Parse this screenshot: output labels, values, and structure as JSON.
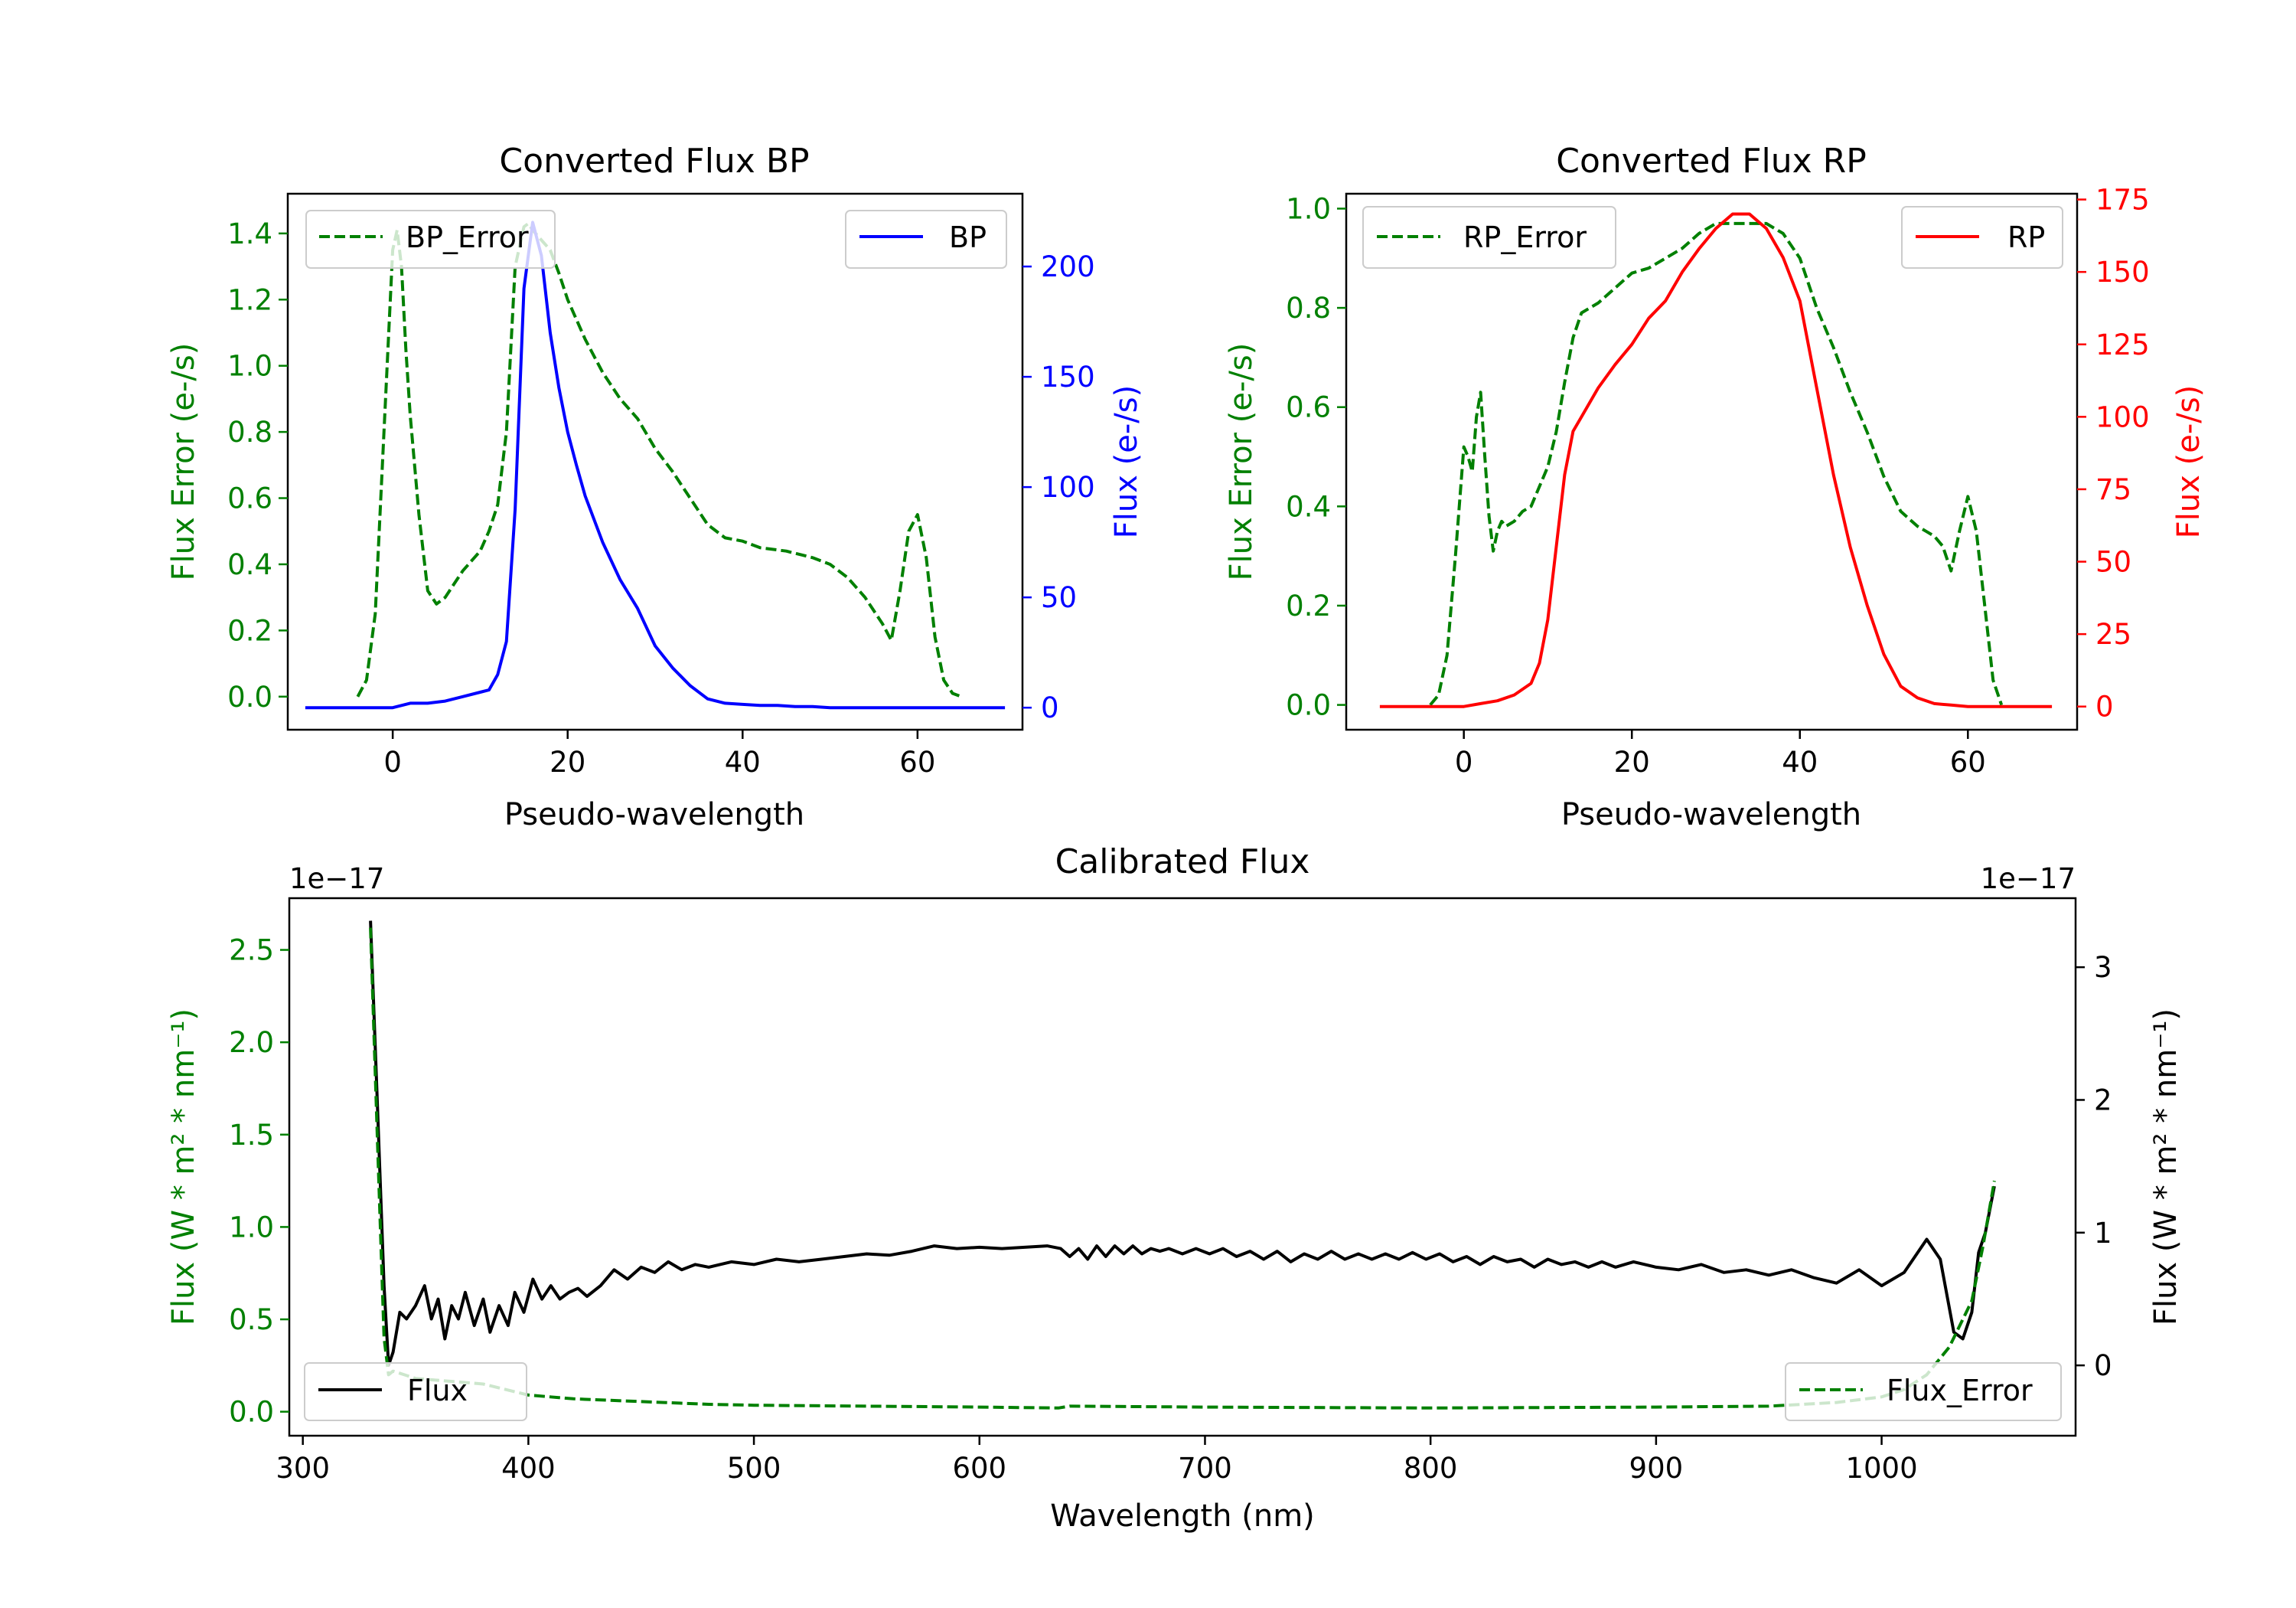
{
  "chart_data": [
    {
      "type": "line",
      "title": "Converted Flux BP",
      "xlabel": "Pseudo-wavelength",
      "ylabel_left": "Flux Error (e-/s)",
      "ylabel_right": "Flux (e-/s)",
      "xlim": [
        -12,
        72
      ],
      "ylim_left": [
        -0.1,
        1.52
      ],
      "ylim_right": [
        -10,
        233
      ],
      "xticks": [
        "0",
        "20",
        "40",
        "60"
      ],
      "yticks_left": [
        "0.0",
        "0.2",
        "0.4",
        "0.6",
        "0.8",
        "1.0",
        "1.2",
        "1.4"
      ],
      "yticks_right": [
        "0",
        "50",
        "100",
        "150",
        "200"
      ],
      "colors": {
        "left_axis": "#008000",
        "right_axis": "#0000ff"
      },
      "series": [
        {
          "name": "BP_Error",
          "axis": "left",
          "color": "#008000",
          "style": "dashed",
          "x": [
            -4,
            -3,
            -2,
            -1,
            0,
            0.5,
            1,
            1.5,
            2,
            3,
            4,
            5,
            6,
            7,
            8,
            9,
            10,
            11,
            12,
            13,
            14,
            15,
            15.5,
            16,
            17,
            18,
            19,
            20,
            22,
            24,
            26,
            28,
            30,
            32,
            34,
            36,
            38,
            40,
            42,
            45,
            48,
            50,
            52,
            54,
            56,
            57,
            58,
            59,
            60,
            61,
            62,
            63,
            64,
            65
          ],
          "y": [
            0,
            0.05,
            0.25,
            0.8,
            1.35,
            1.41,
            1.3,
            1.05,
            0.85,
            0.55,
            0.32,
            0.28,
            0.3,
            0.34,
            0.38,
            0.41,
            0.44,
            0.5,
            0.58,
            0.8,
            1.3,
            1.42,
            1.43,
            1.41,
            1.38,
            1.35,
            1.28,
            1.2,
            1.08,
            0.98,
            0.9,
            0.84,
            0.75,
            0.68,
            0.6,
            0.52,
            0.48,
            0.47,
            0.45,
            0.44,
            0.42,
            0.4,
            0.36,
            0.3,
            0.22,
            0.17,
            0.32,
            0.5,
            0.55,
            0.42,
            0.18,
            0.05,
            0.01,
            0
          ]
        },
        {
          "name": "BP",
          "axis": "right",
          "color": "#0000ff",
          "style": "solid",
          "x": [
            -10,
            -5,
            -2,
            0,
            2,
            4,
            6,
            8,
            10,
            11,
            12,
            13,
            14,
            15,
            16,
            17,
            18,
            19,
            20,
            21,
            22,
            24,
            26,
            28,
            30,
            32,
            34,
            36,
            38,
            40,
            42,
            44,
            46,
            48,
            50,
            55,
            60,
            65,
            70
          ],
          "y": [
            0,
            0,
            0,
            0,
            2,
            2,
            3,
            5,
            7,
            8,
            15,
            30,
            90,
            190,
            220,
            205,
            170,
            145,
            125,
            110,
            96,
            75,
            58,
            45,
            28,
            18,
            10,
            4,
            2,
            1.5,
            1,
            1,
            0.5,
            0.5,
            0,
            0,
            0,
            0,
            0
          ]
        }
      ],
      "legend": [
        {
          "label": "BP_Error",
          "position": "upper left"
        },
        {
          "label": "BP",
          "position": "upper right"
        }
      ]
    },
    {
      "type": "line",
      "title": "Converted Flux RP",
      "xlabel": "Pseudo-wavelength",
      "ylabel_left": "Flux Error (e-/s)",
      "ylabel_right": "Flux (e-/s)",
      "xlim": [
        -14,
        73
      ],
      "ylim_left": [
        -0.05,
        1.03
      ],
      "ylim_right": [
        -8,
        177
      ],
      "xticks": [
        "0",
        "20",
        "40",
        "60"
      ],
      "yticks_left": [
        "0.0",
        "0.2",
        "0.4",
        "0.6",
        "0.8",
        "1.0"
      ],
      "yticks_right": [
        "0",
        "25",
        "50",
        "75",
        "100",
        "125",
        "150",
        "175"
      ],
      "colors": {
        "left_axis": "#008000",
        "right_axis": "#ff0000"
      },
      "series": [
        {
          "name": "RP_Error",
          "axis": "left",
          "color": "#008000",
          "style": "dashed",
          "x": [
            -4,
            -3,
            -2,
            -1,
            0,
            0.5,
            1,
            1.5,
            2,
            2.5,
            3,
            3.5,
            4,
            4.5,
            5,
            6,
            7,
            8,
            10,
            11,
            12,
            13,
            14,
            16,
            18,
            20,
            22,
            24,
            26,
            28,
            30,
            32,
            34,
            36,
            38,
            40,
            42,
            44,
            46,
            48,
            50,
            52,
            54,
            55,
            56,
            57,
            58,
            59,
            60,
            61,
            62,
            63,
            64
          ],
          "y": [
            0,
            0.02,
            0.1,
            0.3,
            0.52,
            0.5,
            0.47,
            0.58,
            0.63,
            0.5,
            0.38,
            0.31,
            0.35,
            0.37,
            0.36,
            0.37,
            0.39,
            0.4,
            0.48,
            0.55,
            0.65,
            0.74,
            0.79,
            0.81,
            0.84,
            0.87,
            0.88,
            0.9,
            0.92,
            0.95,
            0.97,
            0.97,
            0.97,
            0.97,
            0.95,
            0.9,
            0.8,
            0.72,
            0.63,
            0.55,
            0.46,
            0.39,
            0.36,
            0.35,
            0.34,
            0.32,
            0.27,
            0.35,
            0.42,
            0.35,
            0.2,
            0.05,
            0
          ]
        },
        {
          "name": "RP",
          "axis": "right",
          "color": "#ff0000",
          "style": "solid",
          "x": [
            -10,
            -5,
            -2,
            0,
            2,
            4,
            6,
            8,
            9,
            10,
            11,
            12,
            13,
            14,
            16,
            18,
            20,
            22,
            24,
            26,
            28,
            30,
            32,
            34,
            36,
            38,
            40,
            42,
            44,
            46,
            48,
            50,
            52,
            54,
            56,
            58,
            60,
            65,
            70
          ],
          "y": [
            0,
            0,
            0,
            0,
            1,
            2,
            4,
            8,
            15,
            30,
            55,
            80,
            95,
            100,
            110,
            118,
            125,
            134,
            140,
            150,
            158,
            165,
            170,
            170,
            165,
            155,
            140,
            110,
            80,
            55,
            35,
            18,
            7,
            3,
            1,
            0.5,
            0,
            0,
            0
          ]
        }
      ],
      "legend": [
        {
          "label": "RP_Error",
          "position": "upper left"
        },
        {
          "label": "RP",
          "position": "upper right"
        }
      ]
    },
    {
      "type": "line",
      "title": "Calibrated Flux",
      "xlabel": "Wavelength (nm)",
      "ylabel_left": "Flux (W * m² * nm⁻¹)",
      "ylabel_right": "Flux (W * m² * nm⁻¹)",
      "offset_left": "1e−17",
      "offset_right": "1e−17",
      "xlim": [
        294,
        1086
      ],
      "ylim_left": [
        -0.13,
        2.78
      ],
      "ylim_right": [
        -0.53,
        3.52
      ],
      "xticks": [
        "300",
        "400",
        "500",
        "600",
        "700",
        "800",
        "900",
        "1000"
      ],
      "yticks_left": [
        "0.0",
        "0.5",
        "1.0",
        "1.5",
        "2.0",
        "2.5"
      ],
      "yticks_right": [
        "0",
        "1",
        "2",
        "3"
      ],
      "colors": {
        "left_axis": "#008000",
        "right_axis": "#000000"
      },
      "series": [
        {
          "name": "Flux",
          "axis": "right",
          "color": "#000000",
          "style": "solid",
          "x": [
            330,
            333,
            336,
            338,
            340,
            343,
            346,
            350,
            354,
            357,
            360,
            363,
            366,
            369,
            372,
            376,
            380,
            383,
            387,
            391,
            394,
            398,
            402,
            406,
            410,
            414,
            418,
            422,
            426,
            432,
            438,
            444,
            450,
            456,
            462,
            468,
            474,
            480,
            490,
            500,
            510,
            520,
            530,
            540,
            550,
            560,
            570,
            580,
            590,
            600,
            610,
            620,
            630,
            636,
            640,
            644,
            648,
            652,
            656,
            660,
            664,
            668,
            672,
            676,
            680,
            684,
            690,
            696,
            702,
            708,
            714,
            720,
            726,
            732,
            738,
            744,
            750,
            756,
            762,
            768,
            774,
            780,
            786,
            792,
            798,
            804,
            810,
            816,
            822,
            828,
            834,
            840,
            846,
            852,
            858,
            864,
            870,
            876,
            882,
            890,
            900,
            910,
            920,
            930,
            940,
            950,
            960,
            970,
            980,
            990,
            1000,
            1010,
            1020,
            1026,
            1032,
            1036,
            1040,
            1043,
            1046,
            1050
          ],
          "y": [
            3.35,
            2.0,
            0.6,
            0,
            0.1,
            0.4,
            0.35,
            0.45,
            0.6,
            0.35,
            0.5,
            0.2,
            0.45,
            0.35,
            0.55,
            0.3,
            0.5,
            0.25,
            0.45,
            0.3,
            0.55,
            0.4,
            0.65,
            0.5,
            0.6,
            0.5,
            0.55,
            0.58,
            0.52,
            0.6,
            0.72,
            0.65,
            0.74,
            0.7,
            0.78,
            0.72,
            0.76,
            0.74,
            0.78,
            0.76,
            0.8,
            0.78,
            0.8,
            0.82,
            0.84,
            0.83,
            0.86,
            0.9,
            0.88,
            0.89,
            0.88,
            0.89,
            0.9,
            0.88,
            0.82,
            0.88,
            0.8,
            0.9,
            0.82,
            0.9,
            0.84,
            0.9,
            0.84,
            0.88,
            0.86,
            0.88,
            0.84,
            0.88,
            0.84,
            0.88,
            0.82,
            0.86,
            0.8,
            0.86,
            0.78,
            0.84,
            0.8,
            0.86,
            0.8,
            0.84,
            0.8,
            0.84,
            0.8,
            0.85,
            0.8,
            0.84,
            0.78,
            0.82,
            0.76,
            0.82,
            0.78,
            0.8,
            0.74,
            0.8,
            0.76,
            0.78,
            0.74,
            0.78,
            0.74,
            0.78,
            0.74,
            0.72,
            0.76,
            0.7,
            0.72,
            0.68,
            0.72,
            0.66,
            0.62,
            0.72,
            0.6,
            0.7,
            0.95,
            0.8,
            0.25,
            0.2,
            0.4,
            0.85,
            1.0,
            1.35
          ]
        },
        {
          "name": "Flux_Error",
          "axis": "left",
          "color": "#008000",
          "style": "dashed",
          "x": [
            330,
            333,
            336,
            338,
            340,
            345,
            350,
            360,
            370,
            380,
            400,
            420,
            440,
            460,
            480,
            500,
            550,
            600,
            635,
            640,
            700,
            800,
            900,
            950,
            980,
            1000,
            1010,
            1020,
            1030,
            1040,
            1045,
            1050
          ],
          "y": [
            2.62,
            1.5,
            0.4,
            0.2,
            0.22,
            0.2,
            0.18,
            0.17,
            0.16,
            0.15,
            0.09,
            0.07,
            0.06,
            0.05,
            0.04,
            0.035,
            0.03,
            0.025,
            0.02,
            0.03,
            0.025,
            0.02,
            0.025,
            0.03,
            0.05,
            0.08,
            0.12,
            0.2,
            0.35,
            0.6,
            0.9,
            1.25
          ]
        }
      ],
      "legend": [
        {
          "label": "Flux",
          "position": "lower left"
        },
        {
          "label": "Flux_Error",
          "position": "lower right"
        }
      ]
    }
  ]
}
